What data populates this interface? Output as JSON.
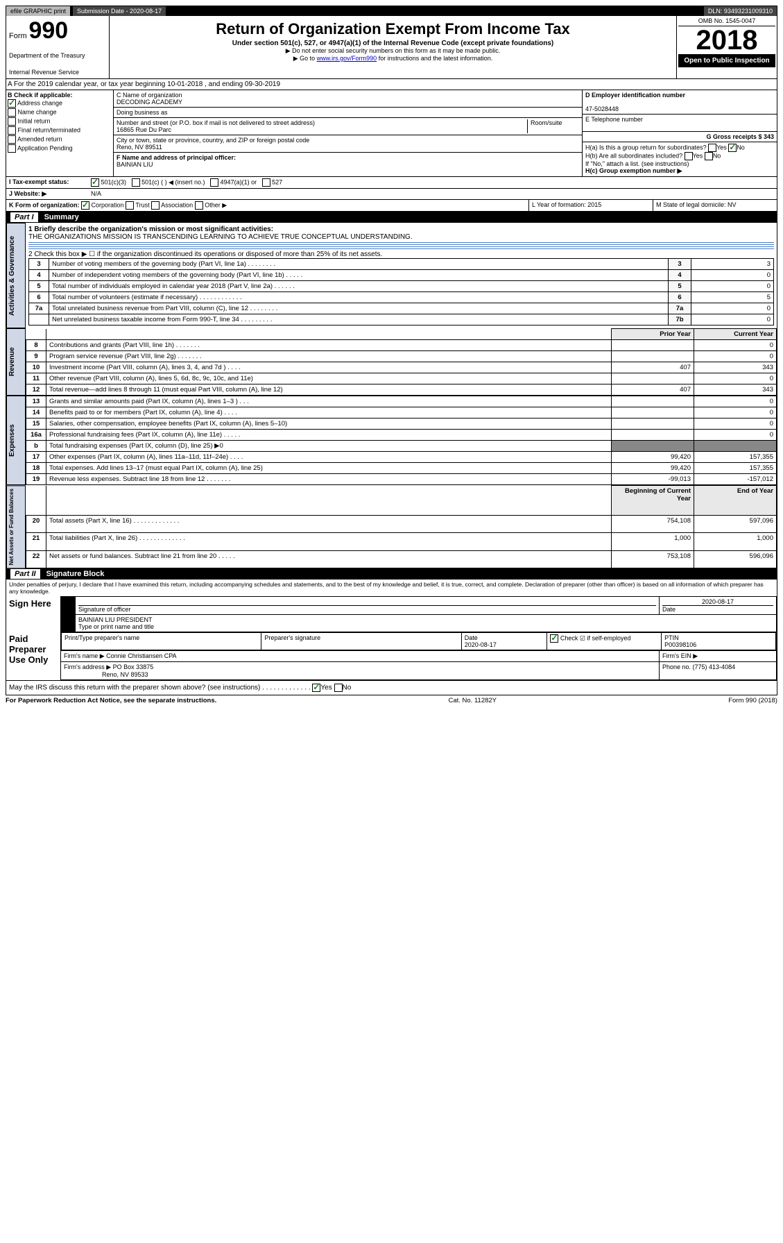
{
  "topbar": {
    "efile": "efile GRAPHIC print",
    "submission_label": "Submission Date - 2020-08-17",
    "dln": "DLN: 93493231009310"
  },
  "header": {
    "form_prefix": "Form",
    "form_number": "990",
    "dept": "Department of the Treasury",
    "irs": "Internal Revenue Service",
    "title": "Return of Organization Exempt From Income Tax",
    "subtitle1": "Under section 501(c), 527, or 4947(a)(1) of the Internal Revenue Code (except private foundations)",
    "subtitle2": "▶ Do not enter social security numbers on this form as it may be made public.",
    "subtitle3_pre": "▶ Go to ",
    "subtitle3_link": "www.irs.gov/Form990",
    "subtitle3_post": " for instructions and the latest information.",
    "omb": "OMB No. 1545-0047",
    "year": "2018",
    "open": "Open to Public Inspection"
  },
  "section_a": "A For the 2019 calendar year, or tax year beginning 10-01-2018    , and ending 09-30-2019",
  "col_b": {
    "label": "B Check if applicable:",
    "items": [
      "Address change",
      "Name change",
      "Initial return",
      "Final return/terminated",
      "Amended return",
      "Application Pending"
    ],
    "checked": [
      true,
      false,
      false,
      false,
      false,
      false
    ]
  },
  "col_c": {
    "c_label": "C Name of organization",
    "org": "DECODING ACADEMY",
    "dba_label": "Doing business as",
    "addr_label": "Number and street (or P.O. box if mail is not delivered to street address)",
    "room_label": "Room/suite",
    "addr": "16865 Rue Du Parc",
    "city_label": "City or town, state or province, country, and ZIP or foreign postal code",
    "city": "Reno, NV  89511",
    "f_label": "F Name and address of principal officer:",
    "f_name": "BAINIAN LIU"
  },
  "col_right": {
    "d_label": "D Employer identification number",
    "d_val": "47-5028448",
    "e_label": "E Telephone number",
    "g_label": "G Gross receipts $ 343",
    "ha_label": "H(a)  Is this a group return for subordinates?",
    "hb_label": "H(b)  Are all subordinates included?",
    "h_note": "If \"No,\" attach a list. (see instructions)",
    "hc_label": "H(c)  Group exemption number ▶",
    "yes": "Yes",
    "no": "No"
  },
  "row_i": {
    "label": "I     Tax-exempt status:",
    "opts": [
      "501(c)(3)",
      "501(c) (  ) ◀ (insert no.)",
      "4947(a)(1) or",
      "527"
    ]
  },
  "row_j": {
    "label": "J    Website: ▶",
    "val": "N/A"
  },
  "row_k": {
    "label": "K Form of organization:",
    "opts": [
      "Corporation",
      "Trust",
      "Association",
      "Other ▶"
    ],
    "l_label": "L Year of formation: 2015",
    "m_label": "M State of legal domicile: NV"
  },
  "part1": {
    "title": "Part I",
    "name": "Summary",
    "q1_label": "1  Briefly describe the organization's mission or most significant activities:",
    "q1_text": "THE ORGANIZATIONS MISSION IS TRANSCENDING LEARNING TO ACHIEVE TRUE CONCEPTUAL UNDERSTANDING.",
    "q2": "2   Check this box ▶ ☐  if the organization discontinued its operations or disposed of more than 25% of its net assets.",
    "rows_gov": [
      {
        "n": "3",
        "d": "Number of voting members of the governing body (Part VI, line 1a)   .    .    .    .    .    .    .    .",
        "k": "3",
        "v": "3"
      },
      {
        "n": "4",
        "d": "Number of independent voting members of the governing body (Part VI, line 1b)   .    .    .    .    .",
        "k": "4",
        "v": "0"
      },
      {
        "n": "5",
        "d": "Total number of individuals employed in calendar year 2018 (Part V, line 2a)   .    .    .    .    .    .",
        "k": "5",
        "v": "0"
      },
      {
        "n": "6",
        "d": "Total number of volunteers (estimate if necessary)   .    .    .    .    .    .    .    .    .    .    .    .",
        "k": "6",
        "v": "5"
      },
      {
        "n": "7a",
        "d": "Total unrelated business revenue from Part VIII, column (C), line 12   .    .    .    .    .    .    .    .",
        "k": "7a",
        "v": "0"
      },
      {
        "n": "",
        "d": "Net unrelated business taxable income from Form 990-T, line 34   .    .    .    .    .    .    .    .    .",
        "k": "7b",
        "v": "0"
      }
    ],
    "hdr_prior": "Prior Year",
    "hdr_curr": "Current Year",
    "rows_rev": [
      {
        "n": "8",
        "d": "Contributions and grants (Part VIII, line 1h)   .    .    .    .    .    .    .",
        "p": "",
        "c": "0"
      },
      {
        "n": "9",
        "d": "Program service revenue (Part VIII, line 2g)   .    .    .    .    .    .    .",
        "p": "",
        "c": "0"
      },
      {
        "n": "10",
        "d": "Investment income (Part VIII, column (A), lines 3, 4, and 7d )   .    .    .    .",
        "p": "407",
        "c": "343"
      },
      {
        "n": "11",
        "d": "Other revenue (Part VIII, column (A), lines 5, 6d, 8c, 9c, 10c, and 11e)",
        "p": "",
        "c": "0"
      },
      {
        "n": "12",
        "d": "Total revenue—add lines 8 through 11 (must equal Part VIII, column (A), line 12)",
        "p": "407",
        "c": "343"
      }
    ],
    "rows_exp": [
      {
        "n": "13",
        "d": "Grants and similar amounts paid (Part IX, column (A), lines 1–3 )   .    .    .",
        "p": "",
        "c": "0"
      },
      {
        "n": "14",
        "d": "Benefits paid to or for members (Part IX, column (A), line 4)   .    .    .    .",
        "p": "",
        "c": "0"
      },
      {
        "n": "15",
        "d": "Salaries, other compensation, employee benefits (Part IX, column (A), lines 5–10)",
        "p": "",
        "c": "0"
      },
      {
        "n": "16a",
        "d": "Professional fundraising fees (Part IX, column (A), line 11e)   .    .    .    .    .",
        "p": "",
        "c": "0"
      },
      {
        "n": "b",
        "d": "Total fundraising expenses (Part IX, column (D), line 25) ▶0",
        "p": "GREY",
        "c": "GREY"
      },
      {
        "n": "17",
        "d": "Other expenses (Part IX, column (A), lines 11a–11d, 11f–24e)   .    .    .    .",
        "p": "99,420",
        "c": "157,355"
      },
      {
        "n": "18",
        "d": "Total expenses. Add lines 13–17 (must equal Part IX, column (A), line 25)",
        "p": "99,420",
        "c": "157,355"
      },
      {
        "n": "19",
        "d": "Revenue less expenses. Subtract line 18 from line 12   .    .    .    .    .    .    .",
        "p": "-99,013",
        "c": "-157,012"
      }
    ],
    "hdr_beg": "Beginning of Current Year",
    "hdr_end": "End of Year",
    "rows_net": [
      {
        "n": "20",
        "d": "Total assets (Part X, line 16)   .    .    .    .    .    .    .    .    .    .    .    .    .",
        "p": "754,108",
        "c": "597,096"
      },
      {
        "n": "21",
        "d": "Total liabilities (Part X, line 26)   .    .    .    .    .    .    .    .    .    .    .    .    .",
        "p": "1,000",
        "c": "1,000"
      },
      {
        "n": "22",
        "d": "Net assets or fund balances. Subtract line 21 from line 20   .    .    .    .    .",
        "p": "753,108",
        "c": "596,096"
      }
    ],
    "vtabs": [
      "Activities & Governance",
      "Revenue",
      "Expenses",
      "Net Assets or Fund Balances"
    ]
  },
  "part2": {
    "title": "Part II",
    "name": "Signature Block",
    "decl": "Under penalties of perjury, I declare that I have examined this return, including accompanying schedules and statements, and to the best of my knowledge and belief, it is true, correct, and complete. Declaration of preparer (other than officer) is based on all information of which preparer has any knowledge.",
    "sign_here": "Sign Here",
    "sig_officer": "Signature of officer",
    "sig_date": "2020-08-17",
    "date_label": "Date",
    "officer_name": "BAINIAN LIU  PRESIDENT",
    "type_name": "Type or print name and title",
    "paid": "Paid Preparer Use Only",
    "p_name_label": "Print/Type preparer's name",
    "p_sig_label": "Preparer's signature",
    "p_date_label": "Date",
    "p_date": "2020-08-17",
    "p_check": "Check ☑ if self-employed",
    "ptin_label": "PTIN",
    "ptin": "P00398106",
    "firm_name_label": "Firm's name    ▶",
    "firm_name": "Connie Christiansen CPA",
    "firm_ein_label": "Firm's EIN ▶",
    "firm_addr_label": "Firm's address ▶",
    "firm_addr1": "PO Box 33875",
    "firm_addr2": "Reno, NV  89533",
    "phone_label": "Phone no. (775) 413-4084",
    "discuss": "May the IRS discuss this return with the preparer shown above? (see instructions)   .    .    .    .    .    .    .    .    .    .    .    .    .",
    "yes": "Yes",
    "no": "No"
  },
  "footer": {
    "left": "For Paperwork Reduction Act Notice, see the separate instructions.",
    "mid": "Cat. No. 11282Y",
    "right": "Form 990 (2018)"
  }
}
